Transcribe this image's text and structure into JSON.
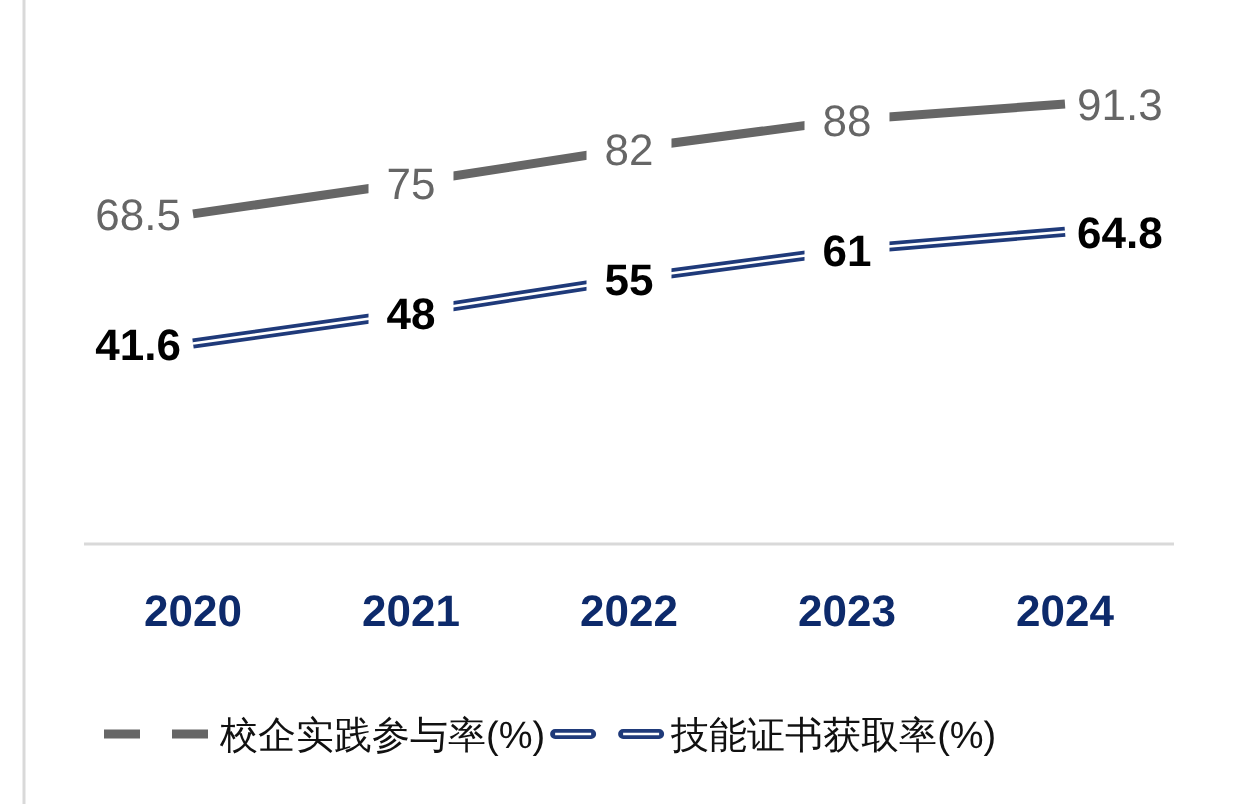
{
  "chart_data": {
    "type": "line",
    "categories": [
      "2020",
      "2021",
      "2022",
      "2023",
      "2024"
    ],
    "series": [
      {
        "name": "校企实践参与率(%)",
        "color": "#666666",
        "values": [
          68.5,
          75,
          82,
          88,
          91.3
        ]
      },
      {
        "name": "技能证书获取率(%)",
        "color": "#1f3a7a",
        "values": [
          41.6,
          48,
          55,
          61,
          64.8
        ]
      }
    ],
    "data_labels": true,
    "legend": "bottom",
    "line_style": "solid"
  }
}
